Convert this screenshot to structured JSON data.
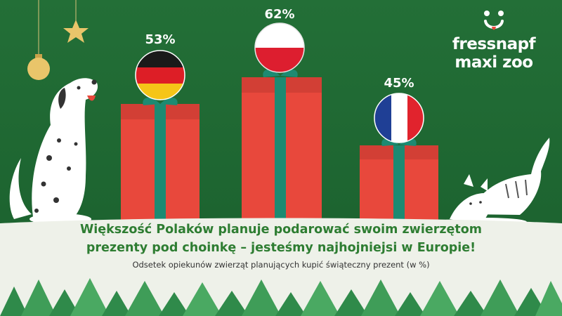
{
  "brand": {
    "line1": "fressnapf",
    "line2": "maxi zoo"
  },
  "headline": {
    "line1": "Większość Polaków planuje podarować swoim zwierzętom",
    "line2": "prezenty pod choinkę – jesteśmy najhojniejsi w Europie!"
  },
  "subtitle": "Odsetek opiekunów zwierząt planujących kupić świąteczny prezent (w %)",
  "colors": {
    "background": "#1f6b34",
    "gift": "#e8483c",
    "ribbon": "#1d8a72",
    "headline": "#2e7d32",
    "ground": "#eef1e9"
  },
  "chart_data": {
    "type": "bar",
    "categories": [
      "Germany",
      "Poland",
      "France"
    ],
    "category_icons": [
      "flag-germany-icon",
      "flag-poland-icon",
      "flag-france-icon"
    ],
    "values": [
      53,
      62,
      45
    ],
    "value_labels": [
      "53%",
      "62%",
      "45%"
    ],
    "title": "Większość Polaków planuje podarować swoim zwierzętom prezenty pod choinkę – jesteśmy najhojniejsi w Europie!",
    "subtitle": "Odsetek opiekunów zwierząt planujących kupić świąteczny prezent (w %)",
    "grid": false,
    "legend": "none"
  }
}
